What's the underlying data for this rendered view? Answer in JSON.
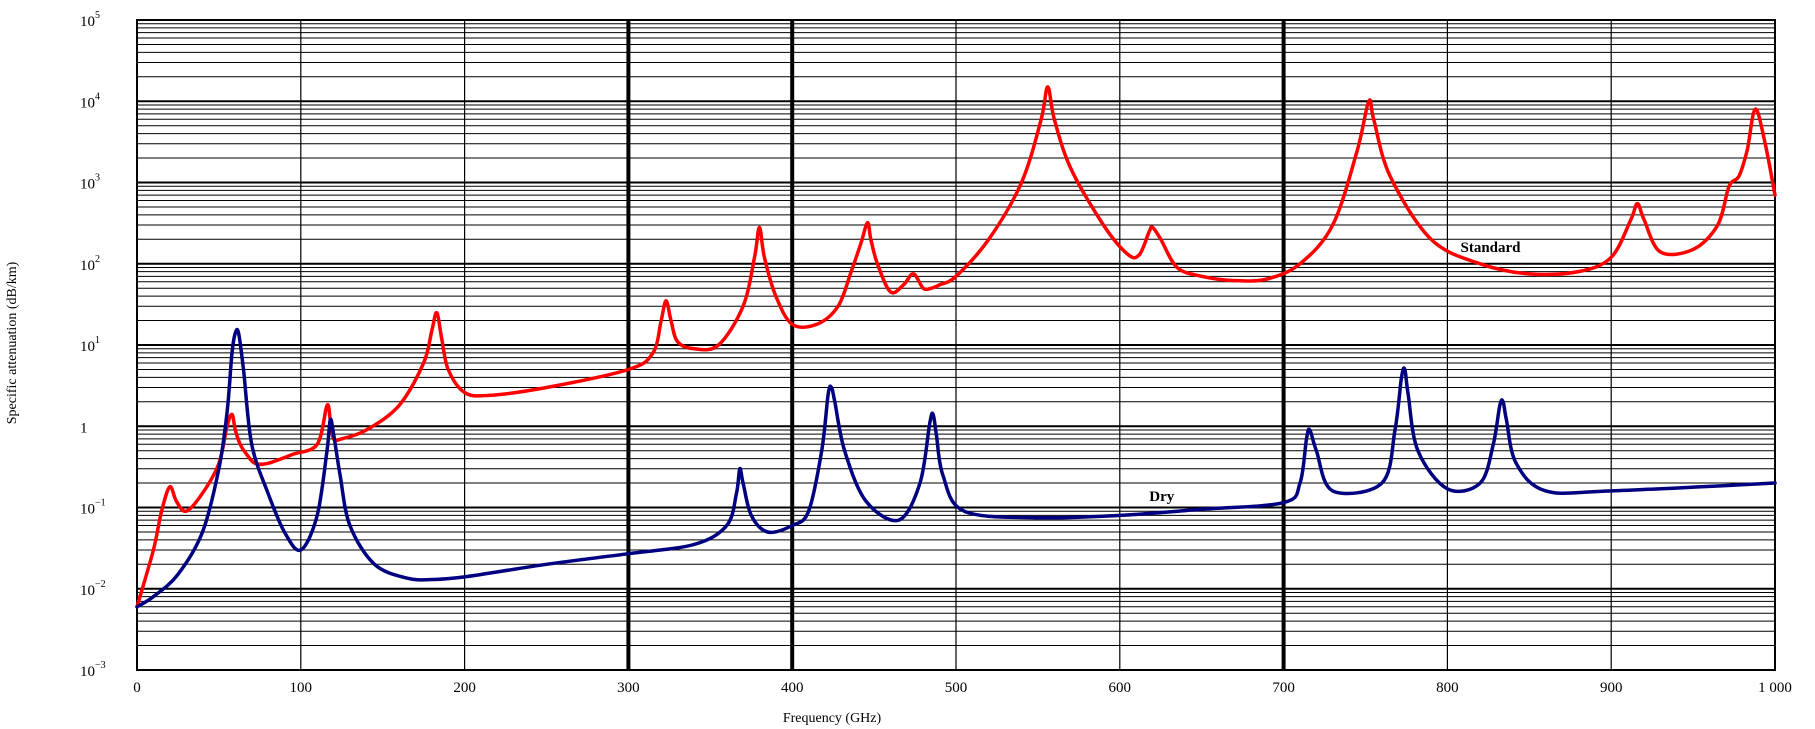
{
  "chart_data": {
    "type": "line",
    "title": "",
    "xlabel": "Frequency (GHz)",
    "ylabel": "Specific attenuation (dB/km)",
    "xlim": [
      0,
      1000
    ],
    "ylim": [
      0.001,
      100000
    ],
    "yscale": "log",
    "grid": true,
    "x_ticks": [
      0,
      100,
      200,
      300,
      400,
      500,
      600,
      700,
      800,
      900,
      1000
    ],
    "x_tick_labels": [
      "0",
      "100",
      "200",
      "300",
      "400",
      "500",
      "600",
      "700",
      "800",
      "900",
      "1 000"
    ],
    "y_tick_labels": [
      {
        "value": 0.001,
        "base": "10",
        "exp": "−3"
      },
      {
        "value": 0.01,
        "base": "10",
        "exp": "−2"
      },
      {
        "value": 0.1,
        "base": "10",
        "exp": "−1"
      },
      {
        "value": 1,
        "base": "1",
        "exp": ""
      },
      {
        "value": 10,
        "base": "10",
        "exp": "1"
      },
      {
        "value": 100,
        "base": "10",
        "exp": "2"
      },
      {
        "value": 1000,
        "base": "10",
        "exp": "3"
      },
      {
        "value": 10000,
        "base": "10",
        "exp": "4"
      },
      {
        "value": 100000,
        "base": "10",
        "exp": "5"
      }
    ],
    "series": [
      {
        "name": "Standard",
        "color": "#ff0000",
        "label_at": [
          808,
          140
        ],
        "x": [
          0,
          10,
          15,
          20,
          24,
          30,
          40,
          50,
          55,
          58,
          60,
          63,
          67,
          72,
          80,
          95,
          110,
          116,
          118,
          120,
          125,
          140,
          160,
          175,
          180,
          183,
          186,
          190,
          200,
          215,
          250,
          300,
          315,
          320,
          323,
          326,
          330,
          340,
          355,
          370,
          377,
          380,
          383,
          390,
          400,
          415,
          428,
          436,
          442,
          446,
          448,
          452,
          460,
          468,
          474,
          480,
          485,
          490,
          500,
          520,
          540,
          552,
          556,
          560,
          570,
          590,
          605,
          612,
          618,
          620,
          625,
          635,
          650,
          670,
          690,
          710,
          730,
          745,
          752,
          755,
          765,
          790,
          820,
          850,
          880,
          900,
          912,
          916,
          920,
          930,
          950,
          965,
          972,
          978,
          983,
          988,
          994,
          1000
        ],
        "y": [
          0.006,
          0.03,
          0.09,
          0.18,
          0.12,
          0.09,
          0.15,
          0.35,
          1.0,
          1.4,
          0.9,
          0.6,
          0.45,
          0.35,
          0.35,
          0.45,
          0.6,
          1.8,
          1.2,
          0.7,
          0.7,
          0.9,
          1.8,
          6,
          15,
          25,
          12,
          5,
          2.6,
          2.4,
          3,
          5,
          8,
          20,
          35,
          20,
          11,
          9,
          10,
          30,
          120,
          280,
          120,
          40,
          18,
          18,
          30,
          80,
          180,
          320,
          200,
          100,
          45,
          55,
          75,
          50,
          50,
          55,
          70,
          200,
          1000,
          6000,
          15000,
          6000,
          1500,
          300,
          130,
          130,
          250,
          280,
          200,
          90,
          70,
          62,
          65,
          100,
          300,
          2500,
          10000,
          6000,
          1200,
          200,
          100,
          75,
          80,
          120,
          350,
          550,
          350,
          140,
          150,
          300,
          900,
          1200,
          2500,
          8000,
          3000,
          700
        ]
      },
      {
        "name": "Dry",
        "color": "#000080",
        "label_at": [
          618,
          0.12
        ],
        "x": [
          0,
          10,
          25,
          40,
          50,
          55,
          58,
          60,
          62,
          65,
          70,
          80,
          90,
          100,
          110,
          116,
          118,
          120,
          124,
          130,
          145,
          165,
          180,
          200,
          250,
          300,
          340,
          360,
          366,
          368,
          370,
          375,
          385,
          400,
          410,
          418,
          422,
          424,
          426,
          432,
          445,
          465,
          478,
          484,
          486,
          488,
          492,
          505,
          550,
          600,
          650,
          700,
          710,
          714,
          716,
          720,
          730,
          760,
          768,
          772,
          774,
          776,
          782,
          800,
          820,
          828,
          832,
          834,
          836,
          842,
          860,
          900,
          1000
        ],
        "y": [
          0.006,
          0.008,
          0.015,
          0.05,
          0.3,
          1.5,
          8,
          14,
          14,
          5,
          0.6,
          0.15,
          0.05,
          0.03,
          0.08,
          0.5,
          1.2,
          0.8,
          0.25,
          0.06,
          0.02,
          0.0135,
          0.013,
          0.014,
          0.02,
          0.027,
          0.035,
          0.06,
          0.15,
          0.3,
          0.2,
          0.08,
          0.05,
          0.06,
          0.09,
          0.5,
          2.5,
          3,
          2,
          0.5,
          0.12,
          0.07,
          0.2,
          1.1,
          1.4,
          0.8,
          0.25,
          0.09,
          0.075,
          0.08,
          0.095,
          0.115,
          0.2,
          0.7,
          0.9,
          0.5,
          0.16,
          0.2,
          0.9,
          4,
          5,
          2.5,
          0.5,
          0.17,
          0.2,
          0.6,
          1.8,
          2,
          1.2,
          0.35,
          0.16,
          0.16,
          0.2
        ]
      }
    ]
  }
}
